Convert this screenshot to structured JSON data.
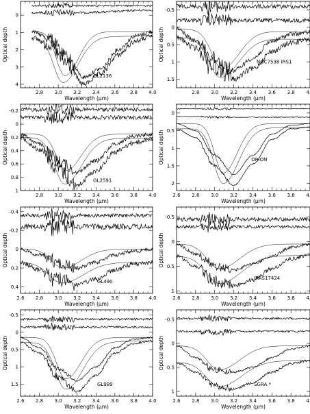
{
  "chart_data": [
    {
      "type": "line",
      "label": "GL2136",
      "xlabel": "Wavelength (μm)",
      "ylabel": "Optical depth",
      "xlim": [
        2.6,
        4.0
      ],
      "ylim": [
        4.2,
        -0.8
      ],
      "yticks": [
        0,
        1,
        2,
        3,
        4
      ],
      "xticks": [
        2.8,
        3.0,
        3.2,
        3.4,
        3.6,
        3.8,
        4.0
      ],
      "x_start": 2.72,
      "x_end": 4.0,
      "series": [
        {
          "values": [
            -0.55,
            -0.55,
            -0.55,
            -0.55,
            -0.55,
            -0.55,
            -0.55,
            -0.55
          ],
          "noise": 0.05
        },
        {
          "values": [
            -0.15,
            -0.15,
            -0.15,
            -0.15,
            -0.18,
            -0.22,
            -0.28,
            -0.3
          ],
          "noise": 0.06
        },
        {
          "values": [
            0.95,
            1.3,
            2.4,
            3.6,
            3.1,
            2.0,
            1.2,
            0.95
          ],
          "noise": 0.12
        },
        {
          "values": [
            1.3,
            1.7,
            2.8,
            4.0,
            3.4,
            2.3,
            1.5,
            1.2
          ],
          "noise": 0.15
        }
      ],
      "ice_model_peaks": [
        {
          "peak": 3.5,
          "center": 3.07,
          "width": 0.09
        },
        {
          "peak": 3.9,
          "center": 3.05,
          "width": 0.1
        }
      ]
    },
    {
      "type": "line",
      "label": "NGC7538 IRS1",
      "xlabel": "Wavelength (μm)",
      "ylabel": "Optical depth",
      "xlim": [
        2.6,
        4.0
      ],
      "ylim": [
        1.75,
        -0.75
      ],
      "yticks": [
        -0.5,
        0.0,
        0.5,
        1.0,
        1.5
      ],
      "xticks": [
        2.8,
        3.0,
        3.2,
        3.4,
        3.6,
        3.8,
        4.0
      ],
      "x_start": 2.6,
      "x_end": 4.0,
      "series": [
        {
          "values": [
            -0.62,
            -0.6,
            -0.6,
            -0.6,
            -0.6,
            -0.6,
            -0.6,
            -0.6
          ],
          "noise": 0.06
        },
        {
          "values": [
            -0.22,
            -0.2,
            -0.22,
            -0.2,
            -0.2,
            -0.2,
            -0.2,
            -0.2
          ],
          "noise": 0.06
        },
        {
          "values": [
            0.05,
            0.4,
            0.9,
            1.25,
            0.9,
            0.4,
            0.2,
            0.15
          ],
          "noise": 0.07
        },
        {
          "values": [
            0.3,
            0.6,
            1.15,
            1.5,
            1.2,
            0.7,
            0.45,
            0.35
          ],
          "noise": 0.08
        }
      ],
      "ice_model_peaks": [
        {
          "peak": 1.2,
          "center": 3.08,
          "width": 0.11
        },
        {
          "peak": 1.45,
          "center": 3.06,
          "width": 0.12
        }
      ]
    },
    {
      "type": "line",
      "label": "GL2591",
      "xlabel": "Wavelength (μm)",
      "ylabel": "Optical depth",
      "xlim": [
        2.6,
        4.0
      ],
      "ylim": [
        1.0,
        -0.3
      ],
      "yticks": [
        -0.2,
        0.0,
        0.2,
        0.4,
        0.6,
        0.8,
        1.0
      ],
      "xticks": [
        2.8,
        3.0,
        3.2,
        3.4,
        3.6,
        3.8,
        4.0
      ],
      "x_start": 2.6,
      "x_end": 4.0,
      "series": [
        {
          "values": [
            -0.22,
            -0.22,
            -0.22,
            -0.22,
            -0.22,
            -0.22,
            -0.22,
            -0.22
          ],
          "noise": 0.03
        },
        {
          "values": [
            -0.1,
            -0.1,
            -0.1,
            -0.1,
            -0.1,
            -0.1,
            -0.1,
            -0.1
          ],
          "noise": 0.03
        },
        {
          "values": [
            0.15,
            0.3,
            0.55,
            0.72,
            0.55,
            0.3,
            0.18,
            0.15
          ],
          "noise": 0.03
        },
        {
          "values": [
            0.2,
            0.38,
            0.68,
            0.92,
            0.7,
            0.42,
            0.28,
            0.22
          ],
          "noise": 0.04
        }
      ],
      "ice_model_peaks": [
        {
          "peak": 0.7,
          "center": 3.08,
          "width": 0.1
        },
        {
          "peak": 0.9,
          "center": 3.07,
          "width": 0.11
        }
      ]
    },
    {
      "type": "line",
      "label": "ORION",
      "xlabel": "Wavelength (μm)",
      "ylabel": "Optical depth",
      "xlim": [
        2.6,
        4.0
      ],
      "ylim": [
        2.2,
        -0.25
      ],
      "yticks": [
        0.0,
        0.5,
        1.0,
        1.5,
        2.0
      ],
      "xticks": [
        2.6,
        2.8,
        3.0,
        3.2,
        3.4,
        3.6,
        3.8,
        4.0
      ],
      "x_start": 2.6,
      "x_end": 4.0,
      "series": [
        {
          "values": [
            -0.12,
            -0.12,
            -0.12,
            -0.12,
            -0.12,
            -0.12,
            -0.12,
            -0.12
          ],
          "noise": 0.01
        },
        {
          "values": [
            0.1,
            0.1,
            0.12,
            0.12,
            0.12,
            0.12,
            0.12,
            0.12
          ],
          "noise": 0.01
        },
        {
          "values": [
            0.3,
            0.5,
            1.2,
            1.75,
            1.2,
            0.6,
            0.35,
            0.3
          ],
          "noise": 0.01
        },
        {
          "values": [
            0.45,
            0.7,
            1.5,
            2.05,
            1.45,
            0.75,
            0.45,
            0.4
          ],
          "noise": 0.015
        }
      ],
      "ice_model_peaks": [
        {
          "peak": 1.7,
          "center": 3.09,
          "width": 0.09
        },
        {
          "peak": 2.0,
          "center": 3.09,
          "width": 0.1
        }
      ]
    },
    {
      "type": "line",
      "label": "GL490",
      "xlabel": "Wavelength (μm)",
      "ylabel": "Optical depth",
      "xlim": [
        2.6,
        4.0
      ],
      "ylim": [
        0.47,
        -0.45
      ],
      "yticks": [
        -0.4,
        -0.2,
        0.0,
        0.2,
        0.4
      ],
      "xticks": [
        2.6,
        2.8,
        3.0,
        3.2,
        3.4,
        3.6,
        3.8,
        4.0
      ],
      "x_start": 2.6,
      "x_end": 4.0,
      "series": [
        {
          "values": [
            -0.36,
            -0.36,
            -0.36,
            -0.36,
            -0.36,
            -0.36,
            -0.36,
            -0.36
          ],
          "noise": 0.02
        },
        {
          "values": [
            -0.24,
            -0.24,
            -0.24,
            -0.24,
            -0.24,
            -0.24,
            -0.24,
            -0.24
          ],
          "noise": 0.03
        },
        {
          "values": [
            0.0,
            0.06,
            0.15,
            0.2,
            0.14,
            0.06,
            0.02,
            0.0
          ],
          "noise": 0.02
        },
        {
          "values": [
            0.14,
            0.22,
            0.32,
            0.38,
            0.32,
            0.22,
            0.16,
            0.14
          ],
          "noise": 0.025
        }
      ],
      "ice_model_peaks": [
        {
          "peak": 0.2,
          "center": 3.05,
          "width": 0.12
        },
        {
          "peak": 0.36,
          "center": 3.04,
          "width": 0.14
        }
      ]
    },
    {
      "type": "line",
      "label": "IRAS17424",
      "xlabel": "Wavelength (μm)",
      "ylabel": "Optical depth",
      "xlim": [
        2.6,
        4.0
      ],
      "ylim": [
        1.05,
        -0.7
      ],
      "yticks": [
        -0.5,
        0.0,
        0.5,
        1.0
      ],
      "xticks": [
        2.6,
        2.8,
        3.0,
        3.2,
        3.4,
        3.6,
        3.8,
        4.0
      ],
      "x_start": 2.6,
      "x_end": 4.0,
      "series": [
        {
          "values": [
            -0.45,
            -0.45,
            -0.45,
            -0.45,
            -0.45,
            -0.45,
            -0.45,
            -0.45
          ],
          "noise": 0.04
        },
        {
          "values": [
            -0.3,
            -0.3,
            -0.3,
            -0.3,
            -0.3,
            -0.3,
            -0.3,
            -0.3
          ],
          "noise": 0.03
        },
        {
          "values": [
            0.05,
            0.25,
            0.5,
            0.58,
            0.45,
            0.3,
            0.12,
            0.05
          ],
          "noise": 0.03
        },
        {
          "values": [
            0.3,
            0.5,
            0.8,
            0.9,
            0.78,
            0.55,
            0.35,
            0.28
          ],
          "noise": 0.04
        }
      ],
      "ice_model_peaks": [
        {
          "peak": 0.55,
          "center": 3.05,
          "width": 0.13
        },
        {
          "peak": 0.85,
          "center": 3.05,
          "width": 0.14
        }
      ]
    },
    {
      "type": "line",
      "label": "GL989",
      "xlabel": "Wavelength (μm)",
      "ylabel": "Optical depth",
      "xlim": [
        2.6,
        4.0
      ],
      "ylim": [
        1.85,
        -0.65
      ],
      "yticks": [
        -0.5,
        0.0,
        0.5,
        1.0,
        1.5
      ],
      "xticks": [
        2.6,
        2.8,
        3.0,
        3.2,
        3.4,
        3.6,
        3.8,
        4.0
      ],
      "x_start": 2.6,
      "x_end": 4.0,
      "series": [
        {
          "values": [
            -0.38,
            -0.38,
            -0.38,
            -0.38,
            -0.38,
            -0.38,
            -0.38,
            -0.38
          ],
          "noise": 0.03
        },
        {
          "values": [
            -0.15,
            -0.15,
            -0.15,
            -0.15,
            -0.15,
            -0.15,
            -0.15,
            -0.15
          ],
          "noise": 0.03
        },
        {
          "values": [
            0.15,
            0.45,
            1.05,
            1.4,
            1.0,
            0.45,
            0.2,
            0.15
          ],
          "noise": 0.02
        },
        {
          "values": [
            0.3,
            0.6,
            1.3,
            1.72,
            1.25,
            0.6,
            0.32,
            0.25
          ],
          "noise": 0.03
        }
      ],
      "ice_model_peaks": [
        {
          "peak": 1.35,
          "center": 3.08,
          "width": 0.1
        },
        {
          "peak": 1.65,
          "center": 3.08,
          "width": 0.11
        }
      ]
    },
    {
      "type": "line",
      "label": "SGRA *",
      "xlabel": "Wavelength (μm)",
      "ylabel": "Optical depth",
      "xlim": [
        2.6,
        4.0
      ],
      "ylim": [
        1.1,
        -0.7
      ],
      "yticks": [
        -0.5,
        0.0,
        0.5,
        1.0
      ],
      "xticks": [
        2.6,
        2.8,
        3.0,
        3.2,
        3.4,
        3.6,
        3.8,
        4.0
      ],
      "x_start": 2.6,
      "x_end": 4.0,
      "series": [
        {
          "values": [
            -0.52,
            -0.52,
            -0.52,
            -0.52,
            -0.52,
            -0.52,
            -0.52,
            -0.52
          ],
          "noise": 0.02
        },
        {
          "values": [
            -0.25,
            -0.25,
            -0.22,
            -0.25,
            -0.25,
            -0.25,
            -0.25,
            -0.25
          ],
          "noise": 0.02
        },
        {
          "values": [
            0.05,
            0.3,
            0.55,
            0.6,
            0.5,
            0.3,
            0.12,
            0.05
          ],
          "noise": 0.02
        },
        {
          "values": [
            0.4,
            0.6,
            0.88,
            0.95,
            0.82,
            0.6,
            0.42,
            0.35
          ],
          "noise": 0.025
        }
      ],
      "ice_model_peaks": [
        {
          "peak": 0.55,
          "center": 3.05,
          "width": 0.13
        },
        {
          "peak": 0.9,
          "center": 3.05,
          "width": 0.14
        }
      ]
    }
  ]
}
